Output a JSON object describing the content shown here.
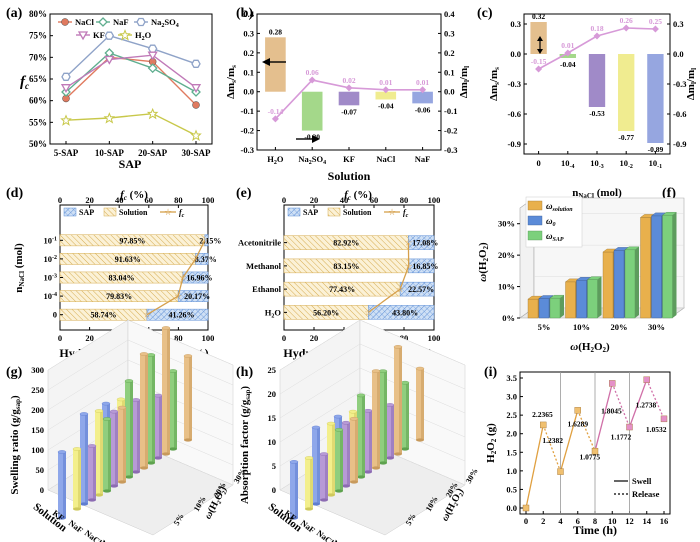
{
  "panels": {
    "a": {
      "label": "(a)"
    },
    "b": {
      "label": "(b)"
    },
    "c": {
      "label": "(c)"
    },
    "d": {
      "label": "(d)"
    },
    "e": {
      "label": "(e)"
    },
    "f": {
      "label": "(f)"
    },
    "g": {
      "label": "(g)"
    },
    "h": {
      "label": "(h)"
    },
    "i": {
      "label": "(i)"
    }
  },
  "chart_data": [
    {
      "panel": "a",
      "type": "line",
      "xlabel": "SAP",
      "ylabel": "fc",
      "categories": [
        "5-SAP",
        "10-SAP",
        "20-SAP",
        "30-SAP"
      ],
      "ylim": [
        50,
        80
      ],
      "yticks": [
        "50%",
        "55%",
        "60%",
        "65%",
        "70%",
        "75%",
        "80%"
      ],
      "series": [
        {
          "name": "NaCl",
          "color": "#e07a5f",
          "marker": "circle",
          "values": [
            60.5,
            70.0,
            69.0,
            59.0
          ]
        },
        {
          "name": "NaF",
          "color": "#5fae8f",
          "marker": "diamond",
          "values": [
            62.0,
            71.0,
            67.5,
            62.0
          ]
        },
        {
          "name": "Na2SO4",
          "color": "#8fa3c8",
          "marker": "hexagon",
          "values": [
            65.5,
            75.0,
            72.0,
            68.5
          ]
        },
        {
          "name": "KF",
          "color": "#c07ab8",
          "marker": "triangle",
          "values": [
            63.0,
            69.5,
            70.5,
            63.0
          ]
        },
        {
          "name": "H2O",
          "color": "#c8c84a",
          "marker": "star",
          "values": [
            55.5,
            56.0,
            57.0,
            52.0
          ]
        }
      ]
    },
    {
      "panel": "b",
      "type": "bar",
      "xlabel": "Solution",
      "ylabel_left": "Δms/ms",
      "ylabel_right": "Δml/ml",
      "categories": [
        "H2O",
        "Na2SO4",
        "KF",
        "NaCl",
        "NaF"
      ],
      "ylim": [
        -0.3,
        0.4
      ],
      "yticks": [
        "-0.3",
        "-0.2",
        "-0.1",
        "0.0",
        "0.1",
        "0.2",
        "0.3",
        "0.4"
      ],
      "bars": {
        "values": [
          0.28,
          -0.2,
          -0.07,
          -0.04,
          -0.06
        ],
        "labels": [
          "0.28",
          "-0.20",
          "-0.07",
          "-0.04",
          "-0.06"
        ],
        "colors": [
          "#e4bf8e",
          "#a4d88a",
          "#a08ac8",
          "#f0ec90",
          "#96a6e0"
        ]
      },
      "line": {
        "values": [
          -0.14,
          0.06,
          0.02,
          0.01,
          0.01
        ],
        "labels": [
          "-0.14",
          "0.06",
          "0.02",
          "0.01",
          "0.01"
        ],
        "color": "#d79ad8"
      }
    },
    {
      "panel": "c",
      "type": "bar",
      "xlabel": "nNaCl (mol)",
      "ylabel_left": "Δms/ms",
      "ylabel_right": "Δml/ml",
      "categories": [
        "0",
        "10-4",
        "10-3",
        "10-2",
        "10-1"
      ],
      "ylim": [
        -1.0,
        0.4
      ],
      "yticks_left": [
        "-0.9",
        "-0.6",
        "-0.3",
        "0.0",
        "0.3"
      ],
      "yticks_right": [
        "-0.9",
        "-0.6",
        "-0.3",
        "0.0",
        "0.3"
      ],
      "bars": {
        "values": [
          0.32,
          -0.04,
          -0.53,
          -0.77,
          -0.89
        ],
        "labels": [
          "0.32",
          "-0.04",
          "-0.53",
          "-0.77",
          "-0.89"
        ],
        "colors": [
          "#e4bf8e",
          "#a4d88a",
          "#a08ac8",
          "#f0ec90",
          "#96a6e0"
        ]
      },
      "line": {
        "values": [
          -0.15,
          0.01,
          0.18,
          0.26,
          0.25
        ],
        "labels": [
          "-0.15",
          "0.01",
          "0.18",
          "0.26",
          "0.25"
        ],
        "color": "#d79ad8"
      }
    },
    {
      "panel": "d",
      "type": "bar",
      "orientation": "horizontal-stacked",
      "xlabel": "Hydrogen peroxide ratio (%)",
      "toplabel": "fc (%)",
      "ylabel": "nNaCl (mol)",
      "categories": [
        "0",
        "10-4",
        "10-3",
        "10-2",
        "10-1"
      ],
      "xlim": [
        0,
        100
      ],
      "xticks": [
        "0",
        "20",
        "40",
        "60",
        "80",
        "100"
      ],
      "legend": [
        "SAP",
        "Solution",
        "fc"
      ],
      "series": [
        {
          "name": "Solution",
          "values": [
            58.74,
            79.83,
            83.04,
            91.63,
            97.85
          ],
          "labels": [
            "58.74%",
            "79.83%",
            "83.04%",
            "91.63%",
            "97.85%"
          ]
        },
        {
          "name": "SAP",
          "values": [
            41.26,
            20.17,
            16.96,
            8.37,
            2.15
          ],
          "labels": [
            "41.26%",
            "20.17%",
            "16.96%",
            "8.37%",
            "2.15%"
          ]
        }
      ]
    },
    {
      "panel": "e",
      "type": "bar",
      "orientation": "horizontal-stacked",
      "xlabel": "Hydrogen peroxide ratio (%)",
      "toplabel": "fc (%)",
      "categories": [
        "H2O",
        "Ethanol",
        "Methanol",
        "Acetonitrile"
      ],
      "xlim": [
        0,
        100
      ],
      "xticks": [
        "0",
        "20",
        "40",
        "60",
        "80",
        "100"
      ],
      "legend": [
        "SAP",
        "Solution",
        "fc"
      ],
      "series": [
        {
          "name": "Solution",
          "values": [
            56.2,
            77.43,
            83.15,
            82.92
          ],
          "labels": [
            "56.20%",
            "77.43%",
            "83.15%",
            "82.92%"
          ]
        },
        {
          "name": "SAP",
          "values": [
            43.8,
            22.57,
            16.85,
            17.08
          ],
          "labels": [
            "43.80%",
            "22.57%",
            "16.85%",
            "17.08%"
          ]
        }
      ]
    },
    {
      "panel": "f",
      "type": "bar",
      "xlabel": "ω(H2O2)",
      "ylabel": "ω(H2O2)",
      "categories": [
        "5%",
        "10%",
        "20%",
        "30%"
      ],
      "ylim": [
        0,
        35
      ],
      "yticks": [
        "0%",
        "10%",
        "20%",
        "30%"
      ],
      "series": [
        {
          "name": "ωsolution",
          "color": "#e8b04c",
          "values": [
            6,
            11.5,
            21,
            32
          ]
        },
        {
          "name": "ω0",
          "color": "#5b8bd8",
          "values": [
            6.2,
            12,
            21.5,
            32.5
          ]
        },
        {
          "name": "ωSAP",
          "color": "#7cd07c",
          "values": [
            6.3,
            12.2,
            21.7,
            32.7
          ]
        }
      ]
    },
    {
      "panel": "g",
      "type": "bar",
      "xlabel": "Solution",
      "ylabel": "Swelling ratio (g/gsap)",
      "zlabel": "ω(H2O2)",
      "categories": [
        "KF",
        "NaF",
        "NaCl",
        "Na2SO4"
      ],
      "depth": [
        "5%",
        "10%",
        "20%",
        "30%"
      ],
      "zlim": [
        0,
        300
      ],
      "zticks": [
        "0",
        "50",
        "100",
        "150",
        "200",
        "250",
        "300"
      ]
    },
    {
      "panel": "h",
      "type": "bar",
      "xlabel": "Solution",
      "ylabel": "Absorption factor (g/gsap)",
      "zlabel": "ω(H2O2)",
      "categories": [
        "KF",
        "NaF",
        "NaCl",
        "Na2SO4"
      ],
      "depth": [
        "5%",
        "10%",
        "20%",
        "30%"
      ],
      "zlim": [
        0,
        25
      ],
      "zticks": [
        "0",
        "5",
        "10",
        "15",
        "20",
        "25"
      ]
    },
    {
      "panel": "i",
      "type": "line",
      "xlabel": "Time (h)",
      "ylabel": "H2O2 (g)",
      "xlim": [
        0,
        16
      ],
      "ylim": [
        0,
        3.5
      ],
      "xticks": [
        "0",
        "2",
        "4",
        "6",
        "8",
        "10",
        "12",
        "14",
        "16"
      ],
      "yticks": [
        "0.0",
        "0.5",
        "1.0",
        "1.5",
        "2.0",
        "2.5",
        "3.0",
        "3.5"
      ],
      "legend": [
        "Swell",
        "Release"
      ],
      "points": [
        [
          0,
          0
        ],
        [
          2,
          2.2365
        ],
        [
          4,
          0.98
        ],
        [
          6,
          2.6289
        ],
        [
          8,
          1.53
        ],
        [
          10,
          3.3545
        ],
        [
          12,
          2.18
        ],
        [
          14,
          3.4538
        ],
        [
          16,
          2.4
        ]
      ],
      "annotations": [
        "2.2365",
        "1.2382",
        "1.6289",
        "1.0775",
        "1.8045",
        "1.1772",
        "1.2738",
        "1.0532"
      ],
      "legend_labels": {
        "swell": "Swell",
        "release": "Release"
      }
    }
  ]
}
